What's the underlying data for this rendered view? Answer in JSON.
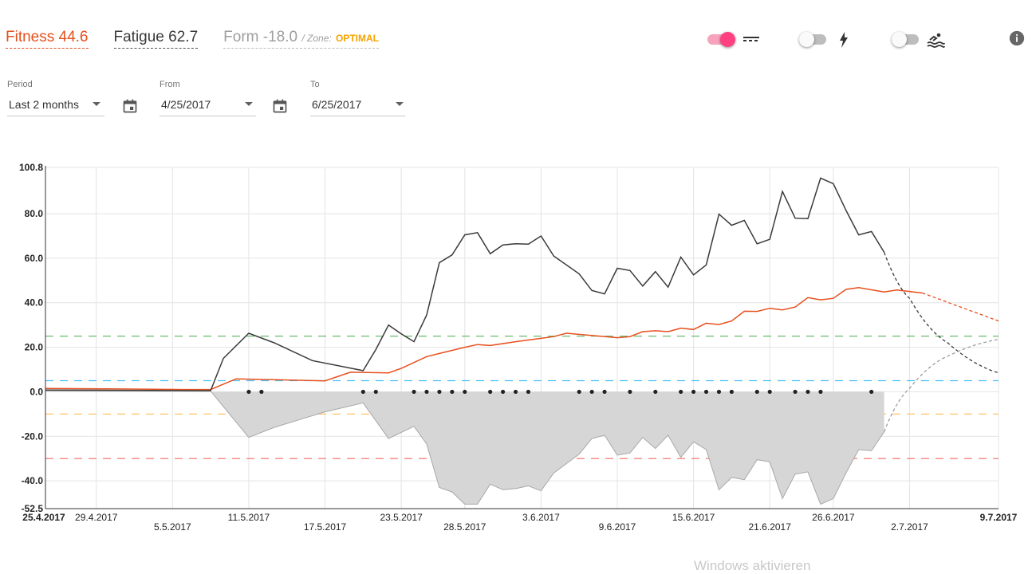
{
  "header": {
    "fitness_label": "Fitness 44.6",
    "fatigue_label": "Fatigue 62.7",
    "form_label": "Form -18.0",
    "zone_label": "/ Zone:",
    "zone_value": "OPTIMAL"
  },
  "toggles": [
    {
      "name": "training-zones-toggle",
      "state": "on",
      "icon": "zones-lines-icon"
    },
    {
      "name": "power-toggle",
      "state": "off",
      "icon": "lightning-bolt-icon"
    },
    {
      "name": "swim-toggle",
      "state": "off",
      "icon": "swimmer-icon"
    }
  ],
  "info_icon": "info-icon",
  "filters": {
    "period": {
      "label": "Period",
      "value": "Last 2 months"
    },
    "from": {
      "label": "From",
      "value": "4/25/2017"
    },
    "to": {
      "label": "To",
      "value": "6/25/2017"
    }
  },
  "colors": {
    "fitness": "#e6501e",
    "fatigue": "#3a3a3a",
    "form_fill": "#d6d6d6",
    "form_stroke": "#a8a8a8",
    "zone_green": "#4caf50",
    "zone_blue": "#29b6f6",
    "zone_orange": "#ffb74d",
    "zone_red": "#ef5350"
  },
  "watermark": "Windows aktivieren",
  "chart_data": {
    "type": "line",
    "x_start": "25.4.2017",
    "x_end": "9.7.2017",
    "ylim": [
      -52.5,
      100.8
    ],
    "y_ticks": [
      "100.8",
      "80.0",
      "60.0",
      "40.0",
      "20.0",
      "0.0",
      "-20.0",
      "-40.0",
      "-52.5"
    ],
    "x_ticks": [
      {
        "label": "25.4.2017",
        "bold": true,
        "row": 0
      },
      {
        "label": "29.4.2017",
        "row": 0
      },
      {
        "label": "5.5.2017",
        "row": 1
      },
      {
        "label": "11.5.2017",
        "row": 0
      },
      {
        "label": "17.5.2017",
        "row": 1
      },
      {
        "label": "23.5.2017",
        "row": 0
      },
      {
        "label": "28.5.2017",
        "row": 1
      },
      {
        "label": "3.6.2017",
        "row": 0
      },
      {
        "label": "9.6.2017",
        "row": 1
      },
      {
        "label": "15.6.2017",
        "row": 0
      },
      {
        "label": "21.6.2017",
        "row": 1
      },
      {
        "label": "26.6.2017",
        "row": 0
      },
      {
        "label": "2.7.2017",
        "row": 1
      },
      {
        "label": "9.7.2017",
        "bold": true,
        "row": 0
      }
    ],
    "zone_lines": [
      {
        "value": 25,
        "color": "#4caf50"
      },
      {
        "value": 5,
        "color": "#29b6f6"
      },
      {
        "value": -10,
        "color": "#ffb74d"
      },
      {
        "value": -30,
        "color": "#ef5350"
      }
    ],
    "series": [
      {
        "name": "Fitness",
        "color": "#e6501e",
        "points": [
          [
            "25.4.2017",
            1.5
          ],
          [
            "30.4.2017",
            1.3
          ],
          [
            "6.5.2017",
            1.0
          ],
          [
            "8.5.2017",
            1.0
          ],
          [
            "10.5.2017",
            5.8
          ],
          [
            "14.5.2017",
            5.3
          ],
          [
            "17.5.2017",
            4.9
          ],
          [
            "19.5.2017",
            8.8
          ],
          [
            "22.5.2017",
            8.5
          ],
          [
            "23.5.2017",
            10.5
          ],
          [
            "25.5.2017",
            15.8
          ],
          [
            "26.5.2017",
            17.2
          ],
          [
            "28.5.2017",
            20.0
          ],
          [
            "29.5.2017",
            21.2
          ],
          [
            "30.5.2017",
            20.8
          ],
          [
            "1.6.2017",
            22.5
          ],
          [
            "3.6.2017",
            24.0
          ],
          [
            "4.6.2017",
            24.8
          ],
          [
            "5.6.2017",
            26.3
          ],
          [
            "9.6.2017",
            24.3
          ],
          [
            "10.6.2017",
            24.8
          ],
          [
            "11.6.2017",
            27.0
          ],
          [
            "12.6.2017",
            27.4
          ],
          [
            "13.6.2017",
            27.0
          ],
          [
            "14.6.2017",
            28.6
          ],
          [
            "15.6.2017",
            28.0
          ],
          [
            "16.6.2017",
            30.8
          ],
          [
            "17.6.2017",
            30.2
          ],
          [
            "18.6.2017",
            31.8
          ],
          [
            "19.6.2017",
            36.2
          ],
          [
            "20.6.2017",
            36.1
          ],
          [
            "21.6.2017",
            37.5
          ],
          [
            "22.6.2017",
            36.8
          ],
          [
            "23.6.2017",
            38.1
          ],
          [
            "24.6.2017",
            42.3
          ],
          [
            "25.6.2017",
            41.3
          ],
          [
            "26.6.2017",
            42.0
          ],
          [
            "27.6.2017",
            46.0
          ],
          [
            "28.6.2017",
            46.8
          ],
          [
            "30.6.2017",
            44.8
          ],
          [
            "1.7.2017",
            45.7
          ],
          [
            "3.7.2017",
            44.4
          ]
        ]
      },
      {
        "name": "Fatigue",
        "color": "#3a3a3a",
        "points": [
          [
            "25.4.2017",
            0.8
          ],
          [
            "8.5.2017",
            0.5
          ],
          [
            "9.5.2017",
            15.0
          ],
          [
            "11.5.2017",
            26.3
          ],
          [
            "13.5.2017",
            22.0
          ],
          [
            "16.5.2017",
            14.0
          ],
          [
            "20.5.2017",
            9.5
          ],
          [
            "21.5.2017",
            19.0
          ],
          [
            "22.5.2017",
            30.0
          ],
          [
            "23.5.2017",
            26.0
          ],
          [
            "24.5.2017",
            22.5
          ],
          [
            "25.5.2017",
            34.5
          ],
          [
            "26.5.2017",
            58.0
          ],
          [
            "27.5.2017",
            61.5
          ],
          [
            "28.5.2017",
            70.5
          ],
          [
            "29.5.2017",
            71.5
          ],
          [
            "30.5.2017",
            62.0
          ],
          [
            "31.5.2017",
            66.0
          ],
          [
            "1.6.2017",
            66.5
          ],
          [
            "2.6.2017",
            66.3
          ],
          [
            "3.6.2017",
            70.0
          ],
          [
            "4.6.2017",
            61.0
          ],
          [
            "6.6.2017",
            53.0
          ],
          [
            "7.6.2017",
            45.5
          ],
          [
            "8.6.2017",
            44.0
          ],
          [
            "9.6.2017",
            55.5
          ],
          [
            "10.6.2017",
            54.5
          ],
          [
            "11.6.2017",
            47.5
          ],
          [
            "12.6.2017",
            54.0
          ],
          [
            "13.6.2017",
            47.0
          ],
          [
            "14.6.2017",
            60.5
          ],
          [
            "15.6.2017",
            52.5
          ],
          [
            "16.6.2017",
            57.0
          ],
          [
            "17.6.2017",
            79.8
          ],
          [
            "18.6.2017",
            74.8
          ],
          [
            "19.6.2017",
            77.0
          ],
          [
            "20.6.2017",
            66.5
          ],
          [
            "21.6.2017",
            68.5
          ],
          [
            "22.6.2017",
            90.0
          ],
          [
            "23.6.2017",
            78.0
          ],
          [
            "24.6.2017",
            77.8
          ],
          [
            "25.6.2017",
            96.0
          ],
          [
            "26.6.2017",
            93.5
          ],
          [
            "27.6.2017",
            81.5
          ],
          [
            "28.6.2017",
            70.5
          ],
          [
            "29.6.2017",
            72.0
          ],
          [
            "30.6.2017",
            62.7
          ]
        ]
      },
      {
        "name": "Form",
        "color": "#a8a8a8",
        "points": [
          [
            "25.4.2017",
            0.5
          ],
          [
            "8.5.2017",
            0.3
          ],
          [
            "11.5.2017",
            -20.5
          ],
          [
            "13.5.2017",
            -16.0
          ],
          [
            "17.5.2017",
            -9.0
          ],
          [
            "20.5.2017",
            -5.0
          ],
          [
            "22.5.2017",
            -21.0
          ],
          [
            "24.5.2017",
            -15.5
          ],
          [
            "25.5.2017",
            -23.5
          ],
          [
            "26.5.2017",
            -43.0
          ],
          [
            "27.5.2017",
            -45.0
          ],
          [
            "28.5.2017",
            -50.5
          ],
          [
            "29.5.2017",
            -50.5
          ],
          [
            "30.5.2017",
            -41.5
          ],
          [
            "31.5.2017",
            -44.0
          ],
          [
            "1.6.2017",
            -43.5
          ],
          [
            "2.6.2017",
            -42.3
          ],
          [
            "3.6.2017",
            -44.5
          ],
          [
            "4.6.2017",
            -36.5
          ],
          [
            "6.6.2017",
            -28.0
          ],
          [
            "7.6.2017",
            -21.0
          ],
          [
            "8.6.2017",
            -19.5
          ],
          [
            "9.6.2017",
            -28.5
          ],
          [
            "10.6.2017",
            -27.5
          ],
          [
            "11.6.2017",
            -20.5
          ],
          [
            "12.6.2017",
            -25.5
          ],
          [
            "13.6.2017",
            -19.5
          ],
          [
            "14.6.2017",
            -29.5
          ],
          [
            "15.6.2017",
            -22.5
          ],
          [
            "16.6.2017",
            -26.0
          ],
          [
            "17.6.2017",
            -44.0
          ],
          [
            "18.6.2017",
            -38.5
          ],
          [
            "19.6.2017",
            -39.5
          ],
          [
            "20.6.2017",
            -30.5
          ],
          [
            "21.6.2017",
            -31.5
          ],
          [
            "22.6.2017",
            -48.0
          ],
          [
            "23.6.2017",
            -37.0
          ],
          [
            "24.6.2017",
            -36.0
          ],
          [
            "25.6.2017",
            -50.5
          ],
          [
            "26.6.2017",
            -48.0
          ],
          [
            "27.6.2017",
            -36.5
          ],
          [
            "28.6.2017",
            -26.0
          ],
          [
            "29.6.2017",
            -26.5
          ],
          [
            "30.6.2017",
            -18.0
          ]
        ]
      }
    ],
    "projections": [
      {
        "name": "Fitness",
        "points": [
          [
            "3.7.2017",
            44.4
          ],
          [
            "9.7.2017",
            31.8
          ]
        ]
      },
      {
        "name": "Fatigue",
        "points": [
          [
            "30.6.2017",
            62.7
          ],
          [
            "2.7.2017",
            42.0
          ],
          [
            "5.7.2017",
            22.0
          ],
          [
            "9.7.2017",
            8.5
          ]
        ]
      },
      {
        "name": "Form",
        "points": [
          [
            "30.6.2017",
            -18.0
          ],
          [
            "2.7.2017",
            1.5
          ],
          [
            "5.7.2017",
            16.0
          ],
          [
            "9.7.2017",
            23.5
          ]
        ]
      }
    ],
    "activity_dates": [
      "11.5.2017",
      "12.5.2017",
      "20.5.2017",
      "21.5.2017",
      "24.5.2017",
      "25.5.2017",
      "26.5.2017",
      "27.5.2017",
      "28.5.2017",
      "30.5.2017",
      "31.5.2017",
      "1.6.2017",
      "2.6.2017",
      "6.6.2017",
      "7.6.2017",
      "8.6.2017",
      "10.6.2017",
      "12.6.2017",
      "14.6.2017",
      "15.6.2017",
      "16.6.2017",
      "17.6.2017",
      "18.6.2017",
      "20.6.2017",
      "21.6.2017",
      "23.6.2017",
      "24.6.2017",
      "25.6.2017",
      "29.6.2017"
    ]
  }
}
